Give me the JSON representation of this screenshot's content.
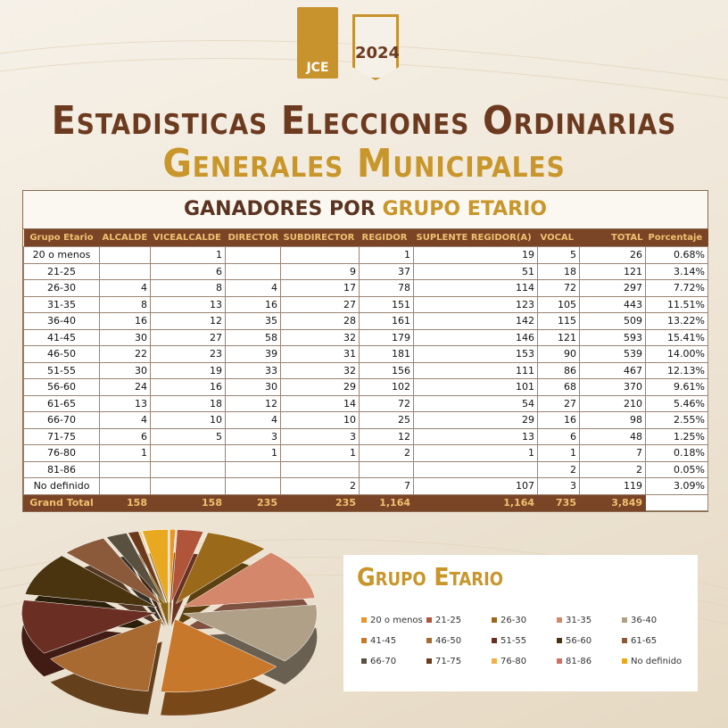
{
  "header": {
    "logo_left": "JCE",
    "logo_right": "2024",
    "title_line1": "Estadisticas Elecciones Ordinarias",
    "title_line2": "Generales Municipales"
  },
  "table": {
    "title": "GANADORES POR",
    "title_highlight": "GRUPO ETARIO",
    "columns": [
      "Grupo Etario",
      "ALCALDE",
      "VICEALCALDE",
      "DIRECTOR",
      "SUBDIRECTOR",
      "REGIDOR",
      "SUPLENTE REGIDOR(A)",
      "VOCAL",
      "TOTAL",
      "Porcentaje"
    ],
    "rows": [
      [
        "20 o menos",
        null,
        1,
        null,
        null,
        1,
        19,
        5,
        26,
        "0.68%"
      ],
      [
        "21-25",
        null,
        6,
        null,
        9,
        37,
        51,
        18,
        121,
        "3.14%"
      ],
      [
        "26-30",
        4,
        8,
        4,
        17,
        78,
        114,
        72,
        297,
        "7.72%"
      ],
      [
        "31-35",
        8,
        13,
        16,
        27,
        151,
        123,
        105,
        443,
        "11.51%"
      ],
      [
        "36-40",
        16,
        12,
        35,
        28,
        161,
        142,
        115,
        509,
        "13.22%"
      ],
      [
        "41-45",
        30,
        27,
        58,
        32,
        179,
        146,
        121,
        593,
        "15.41%"
      ],
      [
        "46-50",
        22,
        23,
        39,
        31,
        181,
        153,
        90,
        539,
        "14.00%"
      ],
      [
        "51-55",
        30,
        19,
        33,
        32,
        156,
        111,
        86,
        467,
        "12.13%"
      ],
      [
        "56-60",
        24,
        16,
        30,
        29,
        102,
        101,
        68,
        370,
        "9.61%"
      ],
      [
        "61-65",
        13,
        18,
        12,
        14,
        72,
        54,
        27,
        210,
        "5.46%"
      ],
      [
        "66-70",
        4,
        10,
        4,
        10,
        25,
        29,
        16,
        98,
        "2.55%"
      ],
      [
        "71-75",
        6,
        5,
        3,
        3,
        12,
        13,
        6,
        48,
        "1.25%"
      ],
      [
        "76-80",
        1,
        null,
        1,
        1,
        2,
        1,
        1,
        7,
        "0.18%"
      ],
      [
        "81-86",
        null,
        null,
        null,
        null,
        null,
        null,
        2,
        2,
        "0.05%"
      ],
      [
        "No definido",
        null,
        null,
        null,
        2,
        7,
        107,
        3,
        119,
        "3.09%"
      ]
    ],
    "total_row": [
      "Grand Total",
      158,
      158,
      235,
      235,
      "1,164",
      "1,164",
      735,
      "3,849",
      null
    ]
  },
  "pie": {
    "title": "Grupo Etario",
    "colors": [
      "#e8962a",
      "#b0543a",
      "#9a6a1a",
      "#d4876a",
      "#b0a088",
      "#c8782a",
      "#a86a30",
      "#6b2e22",
      "#4a3410",
      "#8a5a3a",
      "#5a5040",
      "#6a3a1a",
      "#f0b050",
      "#d07060",
      "#e8a820"
    ]
  }
}
